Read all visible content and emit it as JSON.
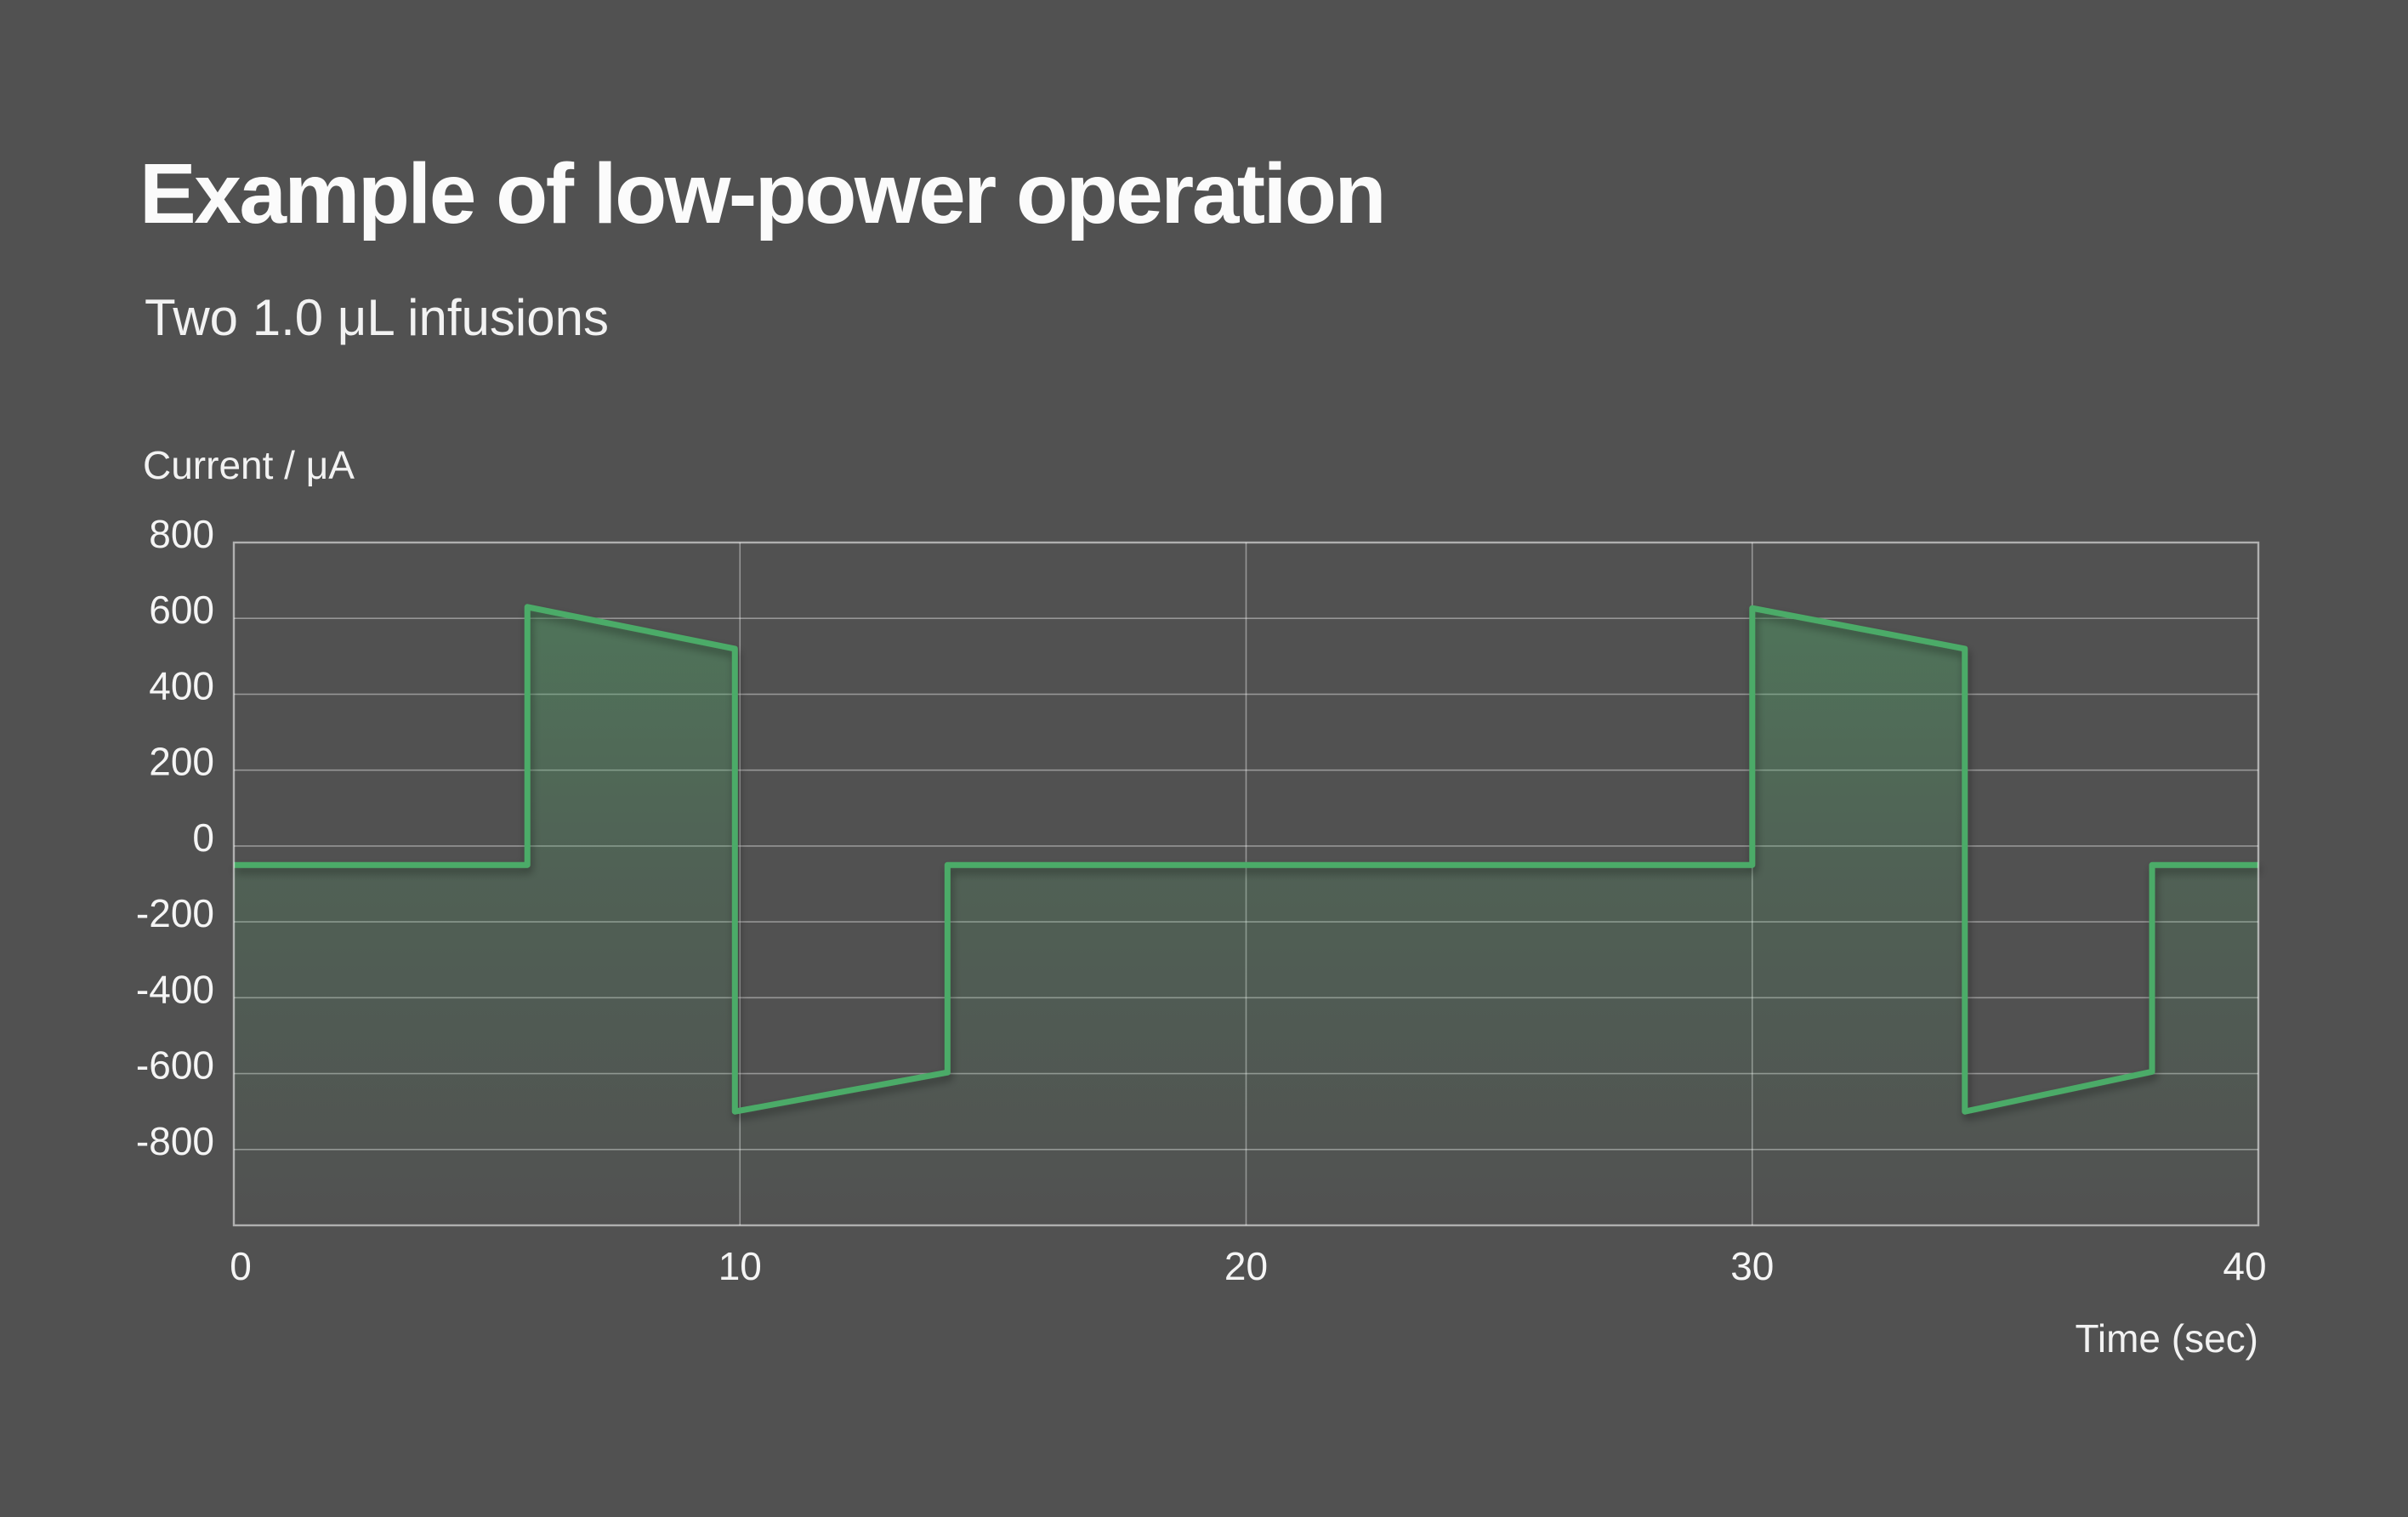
{
  "chart_data": {
    "type": "line",
    "title": "Example of low-power operation",
    "subtitle": "Two 1.0 μL infusions",
    "ylabel": "Current / μA",
    "xlabel": "Time (sec)",
    "xlim": [
      0,
      40
    ],
    "ylim": [
      -1000,
      800
    ],
    "xticks": [
      0,
      10,
      20,
      30,
      40
    ],
    "yticks": [
      800,
      600,
      400,
      200,
      0,
      -200,
      -400,
      -600,
      -800
    ],
    "grid": true,
    "legend": false,
    "series": [
      {
        "name": "current",
        "color": "#4cab67",
        "points": [
          [
            0,
            -50
          ],
          [
            5.8,
            -50
          ],
          [
            5.8,
            630
          ],
          [
            9.9,
            520
          ],
          [
            9.9,
            -700
          ],
          [
            14.1,
            -597
          ],
          [
            14.1,
            -50
          ],
          [
            30,
            -50
          ],
          [
            30,
            627
          ],
          [
            34.2,
            520
          ],
          [
            34.2,
            -700
          ],
          [
            37.9,
            -595
          ],
          [
            37.9,
            -50
          ],
          [
            40,
            -50
          ]
        ]
      }
    ]
  },
  "colors": {
    "background": "#515151",
    "text": "#f5f5f5",
    "gridline": "rgba(255,255,255,0.40)",
    "frame": "rgba(255,255,255,0.55)",
    "accent": "#4cab67"
  }
}
